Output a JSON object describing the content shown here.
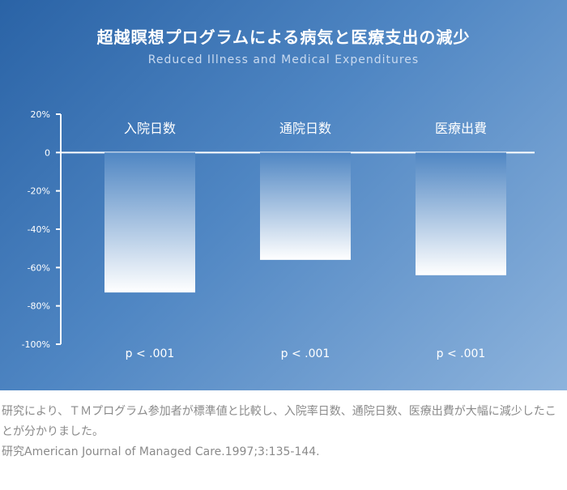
{
  "header": {
    "title": "超越瞑想プログラムによる病気と医療支出の減少",
    "subtitle": "Reduced Illness and Medical Expenditures"
  },
  "chart_data": {
    "type": "bar",
    "categories": [
      "入院日数",
      "通院日数",
      "医療出費"
    ],
    "values": [
      -73,
      -56,
      -64
    ],
    "annotations": [
      "p < .001",
      "p < .001",
      "p < .001"
    ],
    "ylim": [
      -100,
      20
    ],
    "yticks": [
      20,
      0,
      -20,
      -40,
      -60,
      -80,
      -100
    ],
    "ytick_labels": [
      "20%",
      "0",
      "-20%",
      "-40%",
      "-60%",
      "-80%",
      "-100%"
    ],
    "xlabel": "",
    "ylabel": "",
    "grid": false,
    "bar_gradient": [
      "#4f86c3",
      "#ffffff"
    ]
  },
  "caption": {
    "line1": "研究により、ＴＭプログラム参加者が標準値と比較し、入院率日数、通院日数、医療出費が大幅に減少したことが分かりました。",
    "line2": "研究American Journal of Managed Care.1997;3:135-144."
  }
}
